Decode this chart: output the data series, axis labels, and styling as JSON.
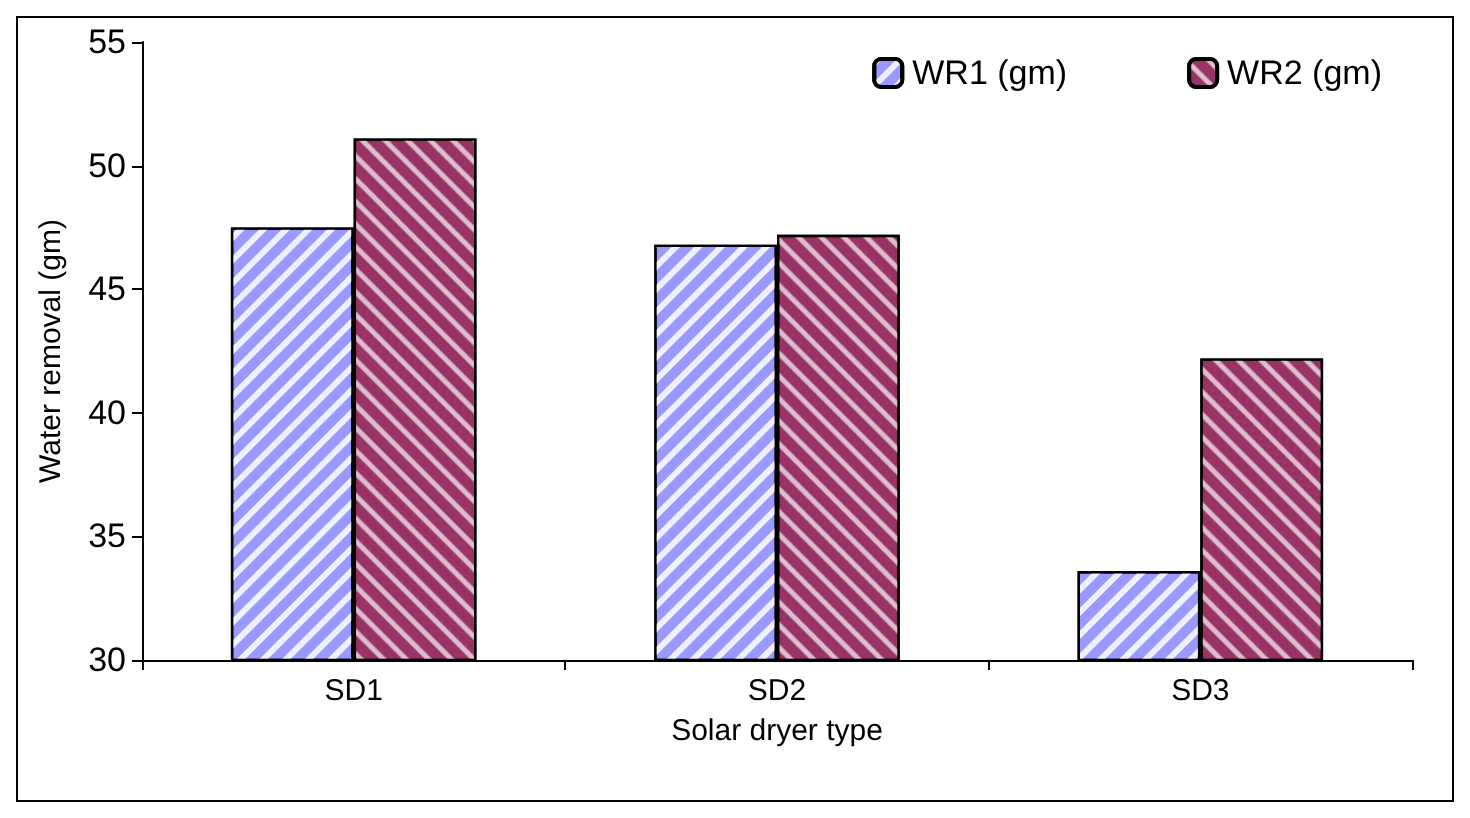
{
  "chart_data": {
    "type": "bar",
    "xlabel": "Solar dryer type",
    "ylabel": "Water removal (gm)",
    "categories": [
      "SD1",
      "SD2",
      "SD3"
    ],
    "series": [
      {
        "name": "WR1 (gm)",
        "color": "#9999ff",
        "values": [
          47.5,
          46.8,
          33.6
        ]
      },
      {
        "name": "WR2 (gm)",
        "color": "#993366",
        "values": [
          51.1,
          47.2,
          42.2
        ]
      }
    ],
    "ylim": [
      30,
      55
    ],
    "yticks": [
      30,
      35,
      40,
      45,
      50,
      55
    ],
    "grid": false,
    "legend": "top right"
  }
}
